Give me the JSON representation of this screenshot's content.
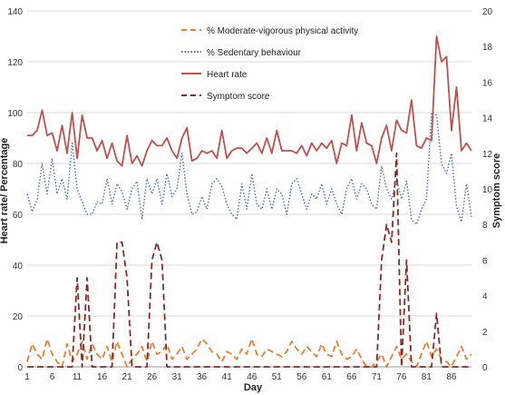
{
  "chart_data": {
    "type": "line",
    "xlabel": "Day",
    "ylabel": "Heart rate/ Percentage",
    "y2label": "Symptom score",
    "ylim": [
      0,
      140
    ],
    "y2lim": [
      0,
      20
    ],
    "yticks": [
      0,
      20,
      40,
      60,
      80,
      100,
      120,
      140
    ],
    "y2ticks": [
      0,
      2,
      4,
      6,
      8,
      10,
      12,
      14,
      16,
      18,
      20
    ],
    "xticks": [
      1,
      6,
      11,
      16,
      21,
      26,
      31,
      36,
      41,
      46,
      51,
      56,
      61,
      66,
      71,
      76,
      81,
      86
    ],
    "xlim": [
      1,
      90
    ],
    "grid": "horizontal",
    "legend_position": "top-center",
    "x": [
      1,
      2,
      3,
      4,
      5,
      6,
      7,
      8,
      9,
      10,
      11,
      12,
      13,
      14,
      15,
      16,
      17,
      18,
      19,
      20,
      21,
      22,
      23,
      24,
      25,
      26,
      27,
      28,
      29,
      30,
      31,
      32,
      33,
      34,
      35,
      36,
      37,
      38,
      39,
      40,
      41,
      42,
      43,
      44,
      45,
      46,
      47,
      48,
      49,
      50,
      51,
      52,
      53,
      54,
      55,
      56,
      57,
      58,
      59,
      60,
      61,
      62,
      63,
      64,
      65,
      66,
      67,
      68,
      69,
      70,
      71,
      72,
      73,
      74,
      75,
      76,
      77,
      78,
      79,
      80,
      81,
      82,
      83,
      84,
      85,
      86,
      87,
      88,
      89,
      90
    ],
    "series": [
      {
        "name": "% Moderate-vigorous physical activity",
        "axis": "left",
        "color": "#ED7D31",
        "style": "dashed",
        "values": [
          2,
          9,
          5,
          3,
          11,
          5,
          2,
          0,
          9,
          2,
          5,
          10,
          3,
          9,
          5,
          3,
          8,
          2,
          10,
          5,
          0,
          3,
          5,
          8,
          2,
          10,
          5,
          6,
          9,
          3,
          5,
          8,
          3,
          5,
          7,
          11,
          9,
          6,
          5,
          2,
          6,
          5,
          3,
          7,
          5,
          11,
          5,
          4,
          7,
          6,
          5,
          4,
          6,
          10,
          7,
          5,
          8,
          6,
          4,
          9,
          5,
          4,
          10,
          5,
          3,
          4,
          7,
          3,
          0,
          0,
          2,
          5,
          0,
          4,
          8,
          3,
          5,
          2,
          0,
          5,
          10,
          4,
          7,
          3,
          2,
          0,
          4,
          8,
          3,
          5
        ]
      },
      {
        "name": "% Sedentary behaviour",
        "axis": "left",
        "color": "#4472C4",
        "style": "dotted",
        "values": [
          68,
          61,
          66,
          80,
          68,
          82,
          68,
          74,
          66,
          88,
          70,
          65,
          60,
          60,
          65,
          64,
          74,
          64,
          72,
          69,
          62,
          70,
          73,
          58,
          74,
          68,
          74,
          64,
          76,
          67,
          70,
          84,
          68,
          60,
          61,
          67,
          62,
          72,
          74,
          71,
          64,
          60,
          58,
          72,
          62,
          76,
          64,
          62,
          70,
          62,
          70,
          68,
          60,
          72,
          74,
          68,
          62,
          68,
          66,
          72,
          64,
          70,
          64,
          60,
          70,
          74,
          66,
          72,
          70,
          64,
          62,
          79,
          70,
          66,
          74,
          66,
          73,
          58,
          56,
          62,
          66,
          100,
          99,
          80,
          76,
          84,
          63,
          57,
          72,
          59
        ]
      },
      {
        "name": "Heart rate",
        "axis": "left",
        "color": "#C0504D",
        "style": "solid",
        "values": [
          91,
          91,
          93,
          101,
          91,
          92,
          85,
          95,
          84,
          100,
          82,
          99,
          90,
          90,
          85,
          89,
          82,
          88,
          81,
          79,
          91,
          80,
          83,
          79,
          85,
          89,
          87,
          87,
          90,
          85,
          82,
          90,
          94,
          81,
          82,
          85,
          84,
          85,
          82,
          93,
          82,
          85,
          86,
          86,
          84,
          86,
          88,
          84,
          90,
          84,
          93,
          85,
          85,
          85,
          84,
          87,
          83,
          88,
          85,
          88,
          86,
          89,
          80,
          88,
          87,
          99,
          85,
          96,
          88,
          87,
          80,
          90,
          95,
          85,
          97,
          93,
          92,
          105,
          87,
          86,
          90,
          89,
          130,
          120,
          122,
          93,
          110,
          85,
          88,
          85
        ]
      },
      {
        "name": "Symptom score",
        "axis": "right",
        "color": "#C0504D",
        "style": "dashed",
        "values": [
          0,
          0,
          0,
          0,
          0,
          0,
          0,
          0,
          0,
          0,
          5,
          0,
          5,
          0,
          0,
          0,
          0,
          0,
          7,
          7,
          5,
          0,
          0,
          0,
          0,
          6,
          7,
          6,
          0,
          0,
          0,
          0,
          0,
          0,
          0,
          0,
          0,
          0,
          0,
          0,
          0,
          0,
          0,
          0,
          0,
          0,
          0,
          0,
          0,
          0,
          0,
          0,
          0,
          0,
          0,
          0,
          0,
          0,
          0,
          0,
          0,
          0,
          0,
          0,
          0,
          0,
          0,
          0,
          0,
          0,
          0,
          6,
          8,
          7,
          12,
          0,
          6,
          0,
          0,
          0,
          0,
          0,
          3,
          0,
          0,
          0,
          0,
          0,
          0,
          0
        ]
      }
    ]
  }
}
